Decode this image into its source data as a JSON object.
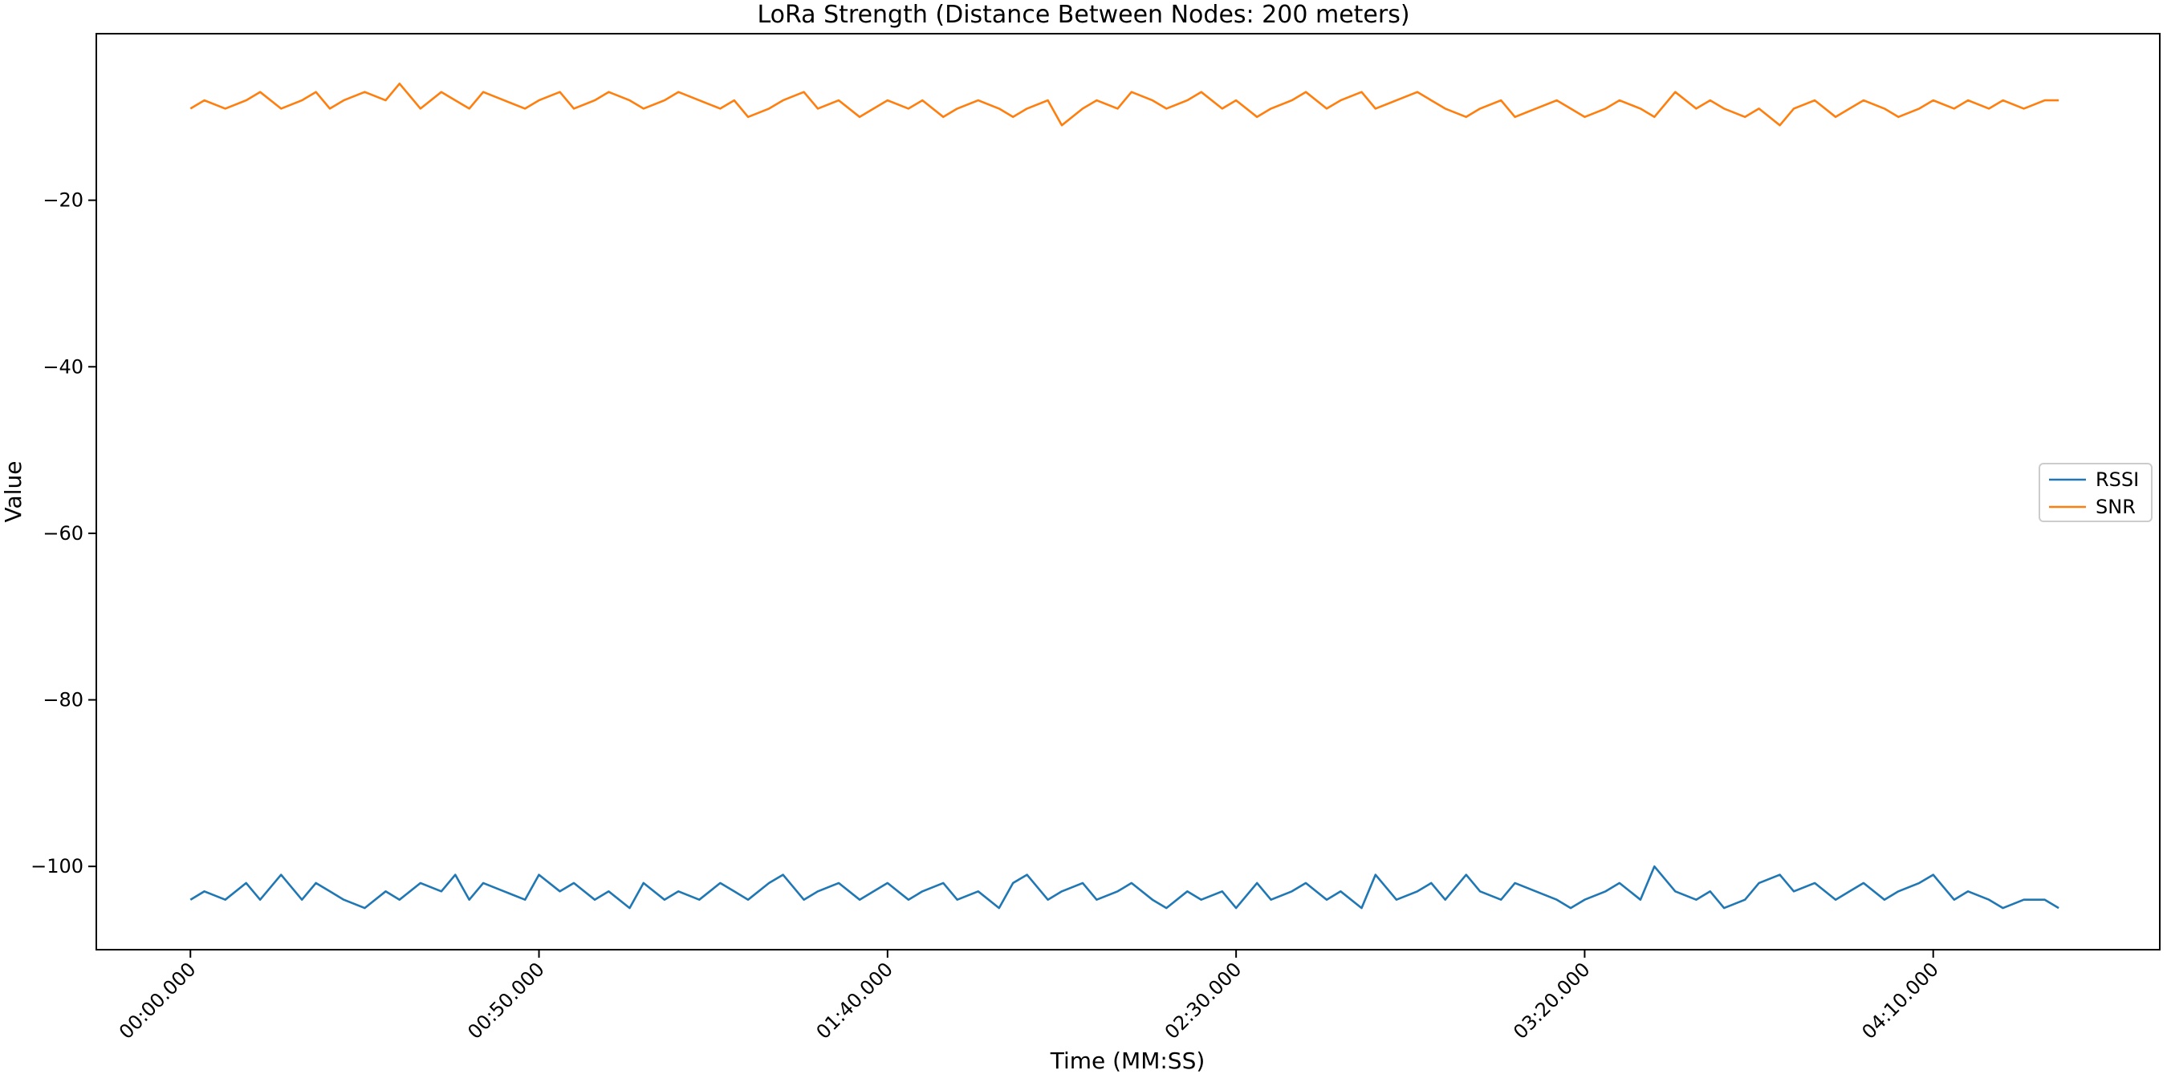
{
  "chart_data": {
    "type": "line",
    "title": "LoRa Strength (Distance Between Nodes: 200 meters)",
    "xlabel": "Time (MM:SS)",
    "ylabel": "Value",
    "xlim_seconds": [
      -13.5,
      282.5
    ],
    "ylim": [
      -110,
      0
    ],
    "x_ticks": [
      {
        "value_seconds": 0,
        "label": "00:00.000"
      },
      {
        "value_seconds": 50,
        "label": "00:50.000"
      },
      {
        "value_seconds": 100,
        "label": "01:40.000"
      },
      {
        "value_seconds": 150,
        "label": "02:30.000"
      },
      {
        "value_seconds": 200,
        "label": "03:20.000"
      },
      {
        "value_seconds": 250,
        "label": "04:10.000"
      }
    ],
    "y_ticks": [
      {
        "value": -20,
        "label": "−20"
      },
      {
        "value": -40,
        "label": "−40"
      },
      {
        "value": -60,
        "label": "−60"
      },
      {
        "value": -80,
        "label": "−80"
      },
      {
        "value": -100,
        "label": "−100"
      }
    ],
    "grid": false,
    "legend_position": "center-right",
    "series": [
      {
        "name": "RSSI",
        "color": "#1f77b4",
        "x_seconds": [
          0,
          2,
          5,
          8,
          10,
          13,
          16,
          18,
          20,
          22,
          25,
          28,
          30,
          33,
          36,
          38,
          40,
          42,
          45,
          48,
          50,
          53,
          55,
          58,
          60,
          63,
          65,
          68,
          70,
          73,
          76,
          78,
          80,
          83,
          85,
          88,
          90,
          93,
          96,
          98,
          100,
          103,
          105,
          108,
          110,
          113,
          116,
          118,
          120,
          123,
          125,
          128,
          130,
          133,
          135,
          138,
          140,
          143,
          145,
          148,
          150,
          153,
          155,
          158,
          160,
          163,
          165,
          168,
          170,
          173,
          176,
          178,
          180,
          183,
          185,
          188,
          190,
          193,
          196,
          198,
          200,
          203,
          205,
          208,
          210,
          213,
          216,
          218,
          220,
          223,
          225,
          228,
          230,
          233,
          236,
          238,
          240,
          243,
          245,
          248,
          250,
          253,
          255,
          258,
          260,
          263,
          266,
          268
        ],
        "y": [
          -104,
          -103,
          -104,
          -102,
          -104,
          -101,
          -104,
          -102,
          -103,
          -104,
          -105,
          -103,
          -104,
          -102,
          -103,
          -101,
          -104,
          -102,
          -103,
          -104,
          -101,
          -103,
          -102,
          -104,
          -103,
          -105,
          -102,
          -104,
          -103,
          -104,
          -102,
          -103,
          -104,
          -102,
          -101,
          -104,
          -103,
          -102,
          -104,
          -103,
          -102,
          -104,
          -103,
          -102,
          -104,
          -103,
          -105,
          -102,
          -101,
          -104,
          -103,
          -102,
          -104,
          -103,
          -102,
          -104,
          -105,
          -103,
          -104,
          -103,
          -105,
          -102,
          -104,
          -103,
          -102,
          -104,
          -103,
          -105,
          -101,
          -104,
          -103,
          -102,
          -104,
          -101,
          -103,
          -104,
          -102,
          -103,
          -104,
          -105,
          -104,
          -103,
          -102,
          -104,
          -100,
          -103,
          -104,
          -103,
          -105,
          -104,
          -102,
          -101,
          -103,
          -102,
          -104,
          -103,
          -102,
          -104,
          -103,
          -102,
          -101,
          -104,
          -103,
          -104,
          -105,
          -104,
          -104,
          -105
        ]
      },
      {
        "name": "SNR",
        "color": "#ff7f0e",
        "x_seconds": [
          0,
          2,
          5,
          8,
          10,
          13,
          16,
          18,
          20,
          22,
          25,
          28,
          30,
          33,
          36,
          38,
          40,
          42,
          45,
          48,
          50,
          53,
          55,
          58,
          60,
          63,
          65,
          68,
          70,
          73,
          76,
          78,
          80,
          83,
          85,
          88,
          90,
          93,
          96,
          98,
          100,
          103,
          105,
          108,
          110,
          113,
          116,
          118,
          120,
          123,
          125,
          128,
          130,
          133,
          135,
          138,
          140,
          143,
          145,
          148,
          150,
          153,
          155,
          158,
          160,
          163,
          165,
          168,
          170,
          173,
          176,
          178,
          180,
          183,
          185,
          188,
          190,
          193,
          196,
          198,
          200,
          203,
          205,
          208,
          210,
          213,
          216,
          218,
          220,
          223,
          225,
          228,
          230,
          233,
          236,
          238,
          240,
          243,
          245,
          248,
          250,
          253,
          255,
          258,
          260,
          263,
          266,
          268
        ],
        "y": [
          -9,
          -8,
          -9,
          -8,
          -7,
          -9,
          -8,
          -7,
          -9,
          -8,
          -7,
          -8,
          -6,
          -9,
          -7,
          -8,
          -9,
          -7,
          -8,
          -9,
          -8,
          -7,
          -9,
          -8,
          -7,
          -8,
          -9,
          -8,
          -7,
          -8,
          -9,
          -8,
          -10,
          -9,
          -8,
          -7,
          -9,
          -8,
          -10,
          -9,
          -8,
          -9,
          -8,
          -10,
          -9,
          -8,
          -9,
          -10,
          -9,
          -8,
          -11,
          -9,
          -8,
          -9,
          -7,
          -8,
          -9,
          -8,
          -7,
          -9,
          -8,
          -10,
          -9,
          -8,
          -7,
          -9,
          -8,
          -7,
          -9,
          -8,
          -7,
          -8,
          -9,
          -10,
          -9,
          -8,
          -10,
          -9,
          -8,
          -9,
          -10,
          -9,
          -8,
          -9,
          -10,
          -7,
          -9,
          -8,
          -9,
          -10,
          -9,
          -11,
          -9,
          -8,
          -10,
          -9,
          -8,
          -9,
          -10,
          -9,
          -8,
          -9,
          -8,
          -9,
          -8,
          -9,
          -8,
          -8
        ]
      }
    ]
  }
}
